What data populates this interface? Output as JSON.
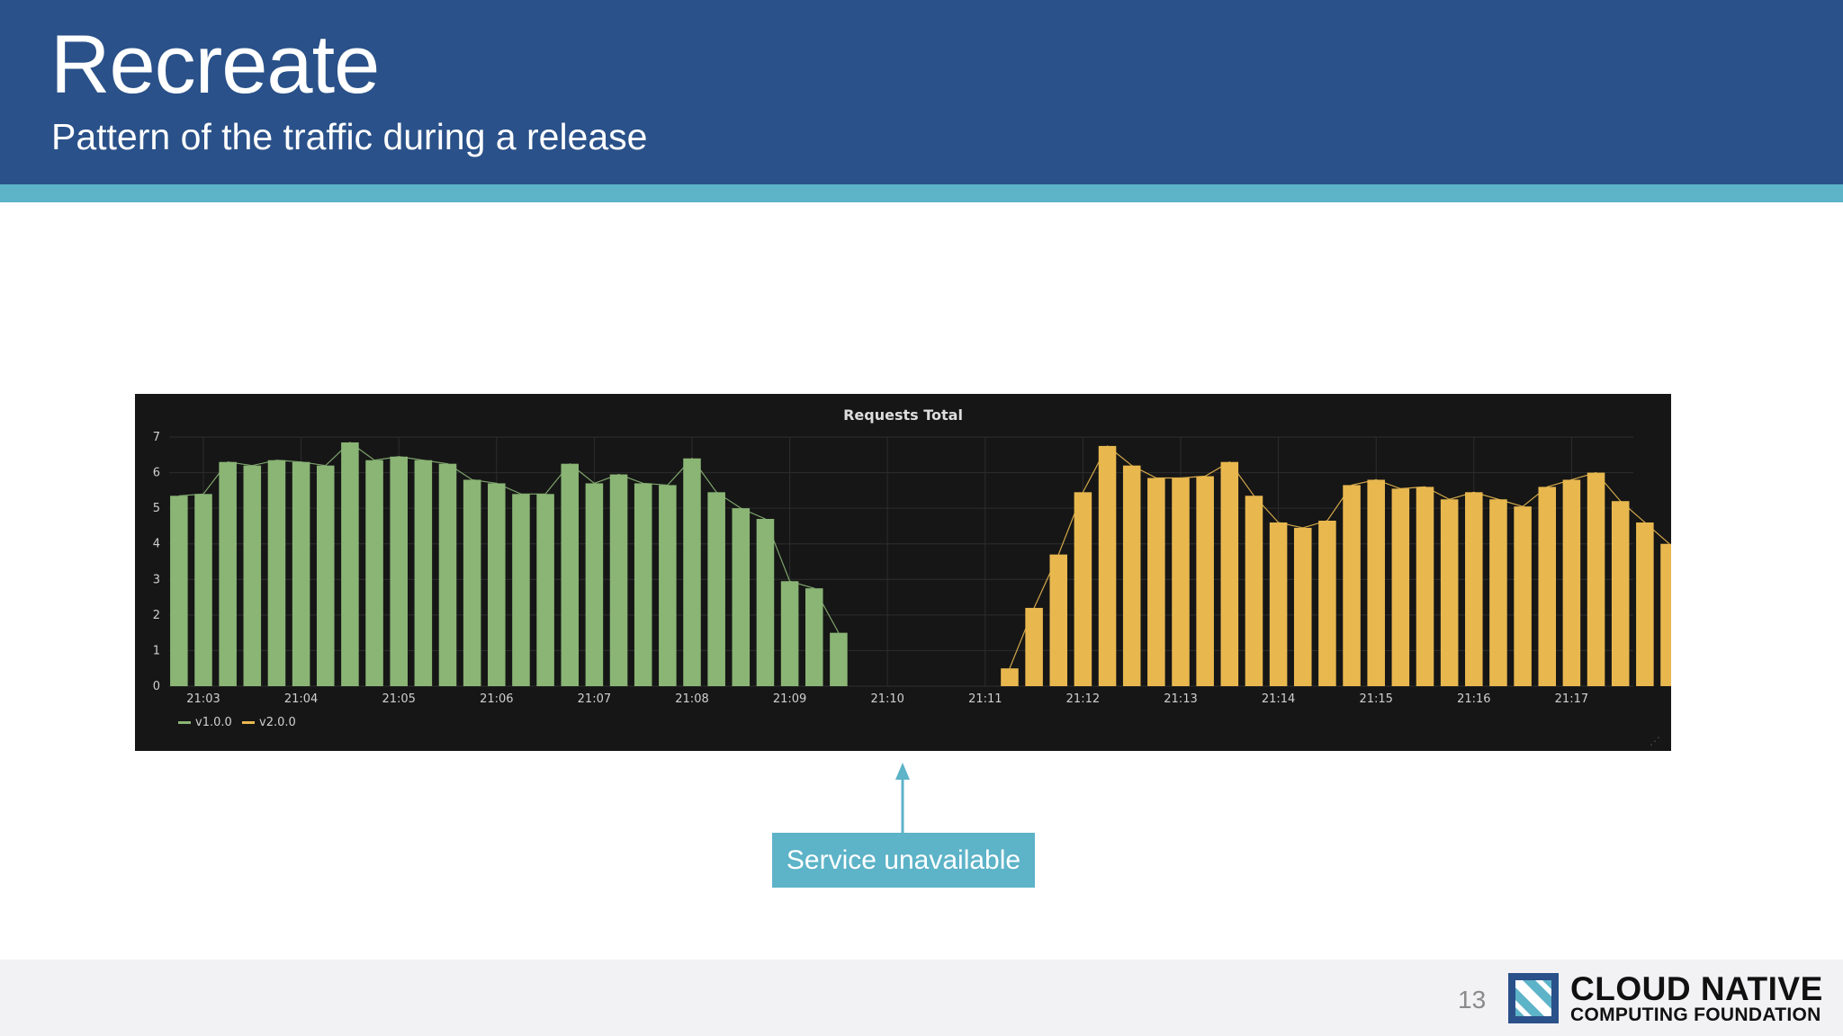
{
  "slide": {
    "title": "Recreate",
    "subtitle": "Pattern of the traffic during a release",
    "page_number": "13"
  },
  "callout": {
    "text": "Service unavailable",
    "points_to": "21:10"
  },
  "logo": {
    "line1": "CLOUD NATIVE",
    "line2": "COMPUTING FOUNDATION",
    "icon": "cncf-logo-icon"
  },
  "colors": {
    "header": "#2a5189",
    "accent": "#5db3c8",
    "panel_bg": "#161616",
    "v1": "#8ab575",
    "v2": "#e8b84f"
  },
  "chart_data": {
    "type": "bar",
    "title": "Requests Total",
    "xlabel": "",
    "ylabel": "",
    "ylim": [
      0,
      7
    ],
    "yticks": [
      0,
      1,
      2,
      3,
      4,
      5,
      6,
      7
    ],
    "xticks": [
      "21:03",
      "21:04",
      "21:05",
      "21:06",
      "21:07",
      "21:08",
      "21:09",
      "21:10",
      "21:11",
      "21:12",
      "21:13",
      "21:14",
      "21:15",
      "21:16",
      "21:17"
    ],
    "grid": true,
    "legend": "bottom-left",
    "series": [
      {
        "name": "v1.0.0",
        "color": "#8ab575",
        "values": [
          5.35,
          5.4,
          6.3,
          6.2,
          6.35,
          6.3,
          6.2,
          6.85,
          6.35,
          6.45,
          6.35,
          6.25,
          5.8,
          5.7,
          5.4,
          5.4,
          6.25,
          5.7,
          5.95,
          5.7,
          5.65,
          6.4,
          5.45,
          5.0,
          4.7,
          2.95,
          2.75,
          1.5,
          0,
          0,
          0,
          0,
          0,
          0,
          0,
          0,
          0,
          0,
          0,
          0,
          0,
          0,
          0,
          0,
          0,
          0,
          0,
          0,
          0,
          0,
          0,
          0,
          0,
          0,
          0,
          0,
          0,
          0,
          0,
          0,
          0
        ]
      },
      {
        "name": "v2.0.0",
        "color": "#e8b84f",
        "values": [
          0,
          0,
          0,
          0,
          0,
          0,
          0,
          0,
          0,
          0,
          0,
          0,
          0,
          0,
          0,
          0,
          0,
          0,
          0,
          0,
          0,
          0,
          0,
          0,
          0,
          0,
          0,
          0,
          0,
          0,
          0,
          0,
          0,
          0,
          0.5,
          2.2,
          3.7,
          5.45,
          6.75,
          6.2,
          5.85,
          5.85,
          5.9,
          6.3,
          5.35,
          4.6,
          4.45,
          4.65,
          5.65,
          5.8,
          5.55,
          5.6,
          5.25,
          5.45,
          5.25,
          5.05,
          5.6,
          5.8,
          6.0,
          5.2,
          4.6,
          4.0
        ]
      }
    ]
  }
}
